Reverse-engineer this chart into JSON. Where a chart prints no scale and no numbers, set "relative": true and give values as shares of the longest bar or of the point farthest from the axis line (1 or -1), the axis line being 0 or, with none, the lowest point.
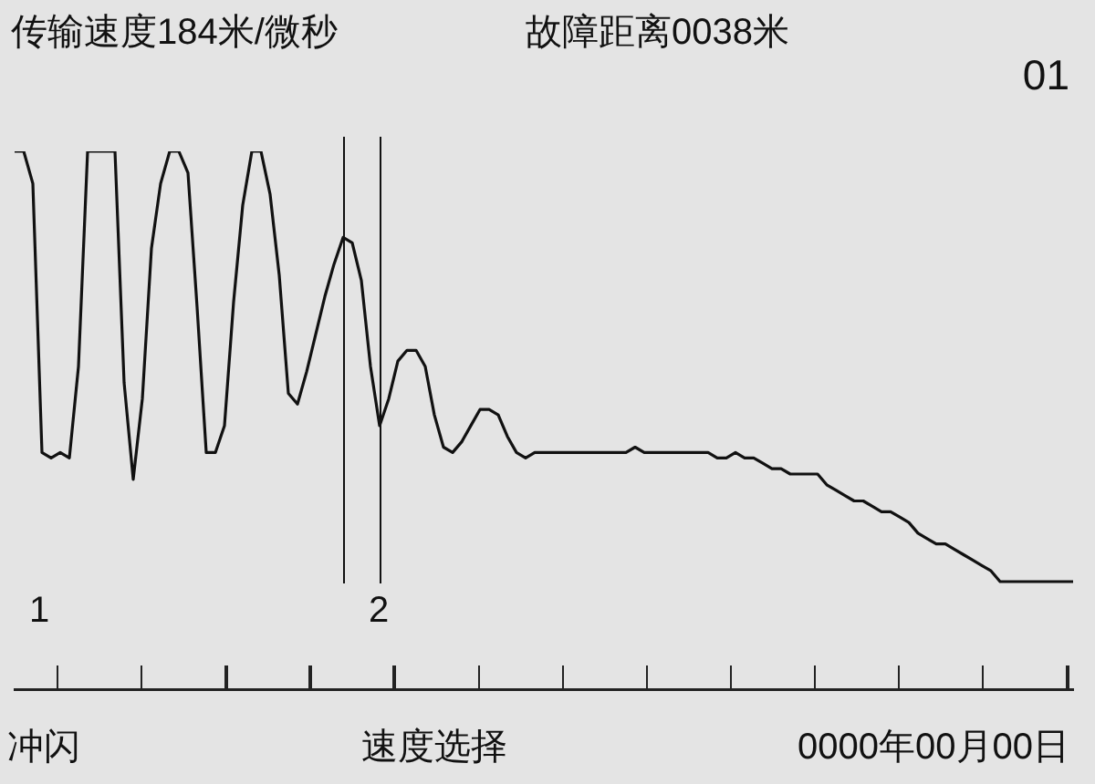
{
  "chart_data": {
    "type": "line",
    "relative": true,
    "title": "传输速度184米/微秒",
    "subtitle": "故障距离0038米",
    "annotations": [
      "01",
      "冲闪",
      "速度选择",
      "0000年00月00日",
      "1",
      "2"
    ],
    "grid": false,
    "legend": false,
    "marker": "none",
    "line_style": "solid",
    "categories": [
      null,
      null,
      null,
      null,
      null,
      null,
      null,
      null,
      null,
      null,
      null,
      null,
      null,
      null,
      null,
      null,
      null,
      null,
      null,
      null,
      null,
      null,
      null,
      null,
      null,
      null,
      null,
      null,
      null,
      null,
      null,
      null,
      null,
      null,
      null,
      null,
      null,
      null,
      null,
      null,
      null,
      null,
      null,
      null,
      null,
      null,
      null,
      null,
      null,
      null,
      null,
      null,
      null,
      null,
      null,
      null,
      null,
      null,
      null,
      null,
      null,
      null,
      null,
      null,
      null,
      null,
      null,
      null,
      null,
      null,
      null,
      null,
      null,
      null,
      null,
      null,
      null,
      null,
      null,
      null,
      null,
      null,
      null,
      null,
      null,
      null,
      null,
      null,
      null,
      null,
      null,
      null,
      null,
      null,
      null,
      null,
      null,
      null,
      null,
      null,
      null,
      null,
      null,
      null,
      null,
      null,
      null,
      null,
      null,
      null,
      null,
      null,
      null,
      null,
      null,
      null,
      null
    ],
    "series": [
      {
        "color": "#111111",
        "values": [
          1,
          1,
          0.94,
          0.44,
          0.43,
          0.44,
          0.43,
          0.6,
          1,
          1,
          1,
          1,
          0.57,
          0.39,
          0.54,
          0.82,
          0.94,
          1,
          1,
          0.96,
          0.71,
          0.44,
          0.44,
          0.49,
          0.72,
          0.9,
          1,
          1,
          0.92,
          0.77,
          0.55,
          0.53,
          0.59,
          0.66,
          0.73,
          0.79,
          0.84,
          0.83,
          0.76,
          0.6,
          0.49,
          0.54,
          0.61,
          0.63,
          0.63,
          0.6,
          0.51,
          0.45,
          0.44,
          0.46,
          0.49,
          0.52,
          0.52,
          0.51,
          0.47,
          0.44,
          0.43,
          0.44,
          0.44,
          0.44,
          0.44,
          0.44,
          0.44,
          0.44,
          0.44,
          0.44,
          0.44,
          0.44,
          0.45,
          0.44,
          0.44,
          0.44,
          0.44,
          0.44,
          0.44,
          0.44,
          0.44,
          0.43,
          0.43,
          0.44,
          0.43,
          0.43,
          0.42,
          0.41,
          0.41,
          0.4,
          0.4,
          0.4,
          0.4,
          0.38,
          0.37,
          0.36,
          0.35,
          0.35,
          0.34,
          0.33,
          0.33,
          0.32,
          0.31,
          0.29,
          0.28,
          0.27,
          0.27,
          0.26,
          0.25,
          0.24,
          0.23,
          0.22,
          0.2,
          0.2,
          0.2,
          0.2,
          0.2,
          0.2,
          0.2,
          0.2,
          0.2
        ]
      }
    ]
  }
}
